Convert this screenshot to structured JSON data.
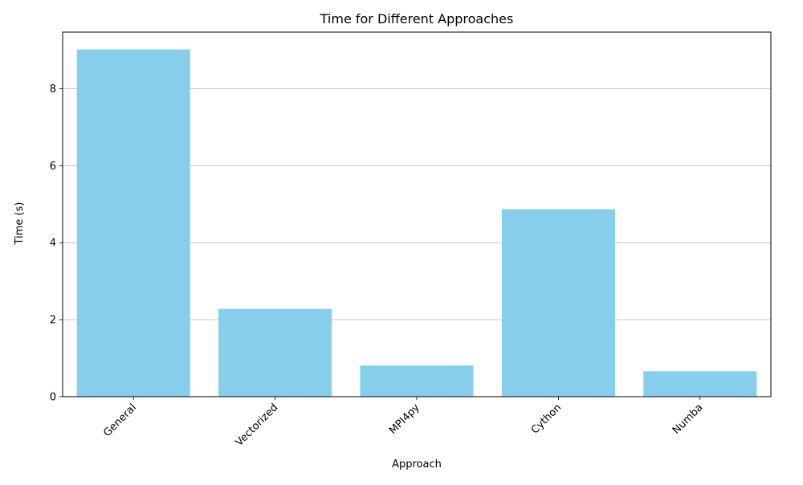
{
  "chart_data": {
    "type": "bar",
    "title": "Time for Different Approaches",
    "xlabel": "Approach",
    "ylabel": "Time (s)",
    "categories": [
      "General",
      "Vectorized",
      "MPI4py",
      "Cython",
      "Numba"
    ],
    "values": [
      9.02,
      2.28,
      0.81,
      4.87,
      0.66
    ],
    "ylim": [
      0,
      9.47
    ],
    "yticks": [
      0,
      2,
      4,
      6,
      8
    ],
    "ytick_labels": [
      "0",
      "2",
      "4",
      "6",
      "8"
    ],
    "grid": "y-axis",
    "x_tick_rotation_deg": 45,
    "bar_color": "#87ceeb",
    "grid_color": "#b0b0b0",
    "axis_color": "#000000"
  }
}
